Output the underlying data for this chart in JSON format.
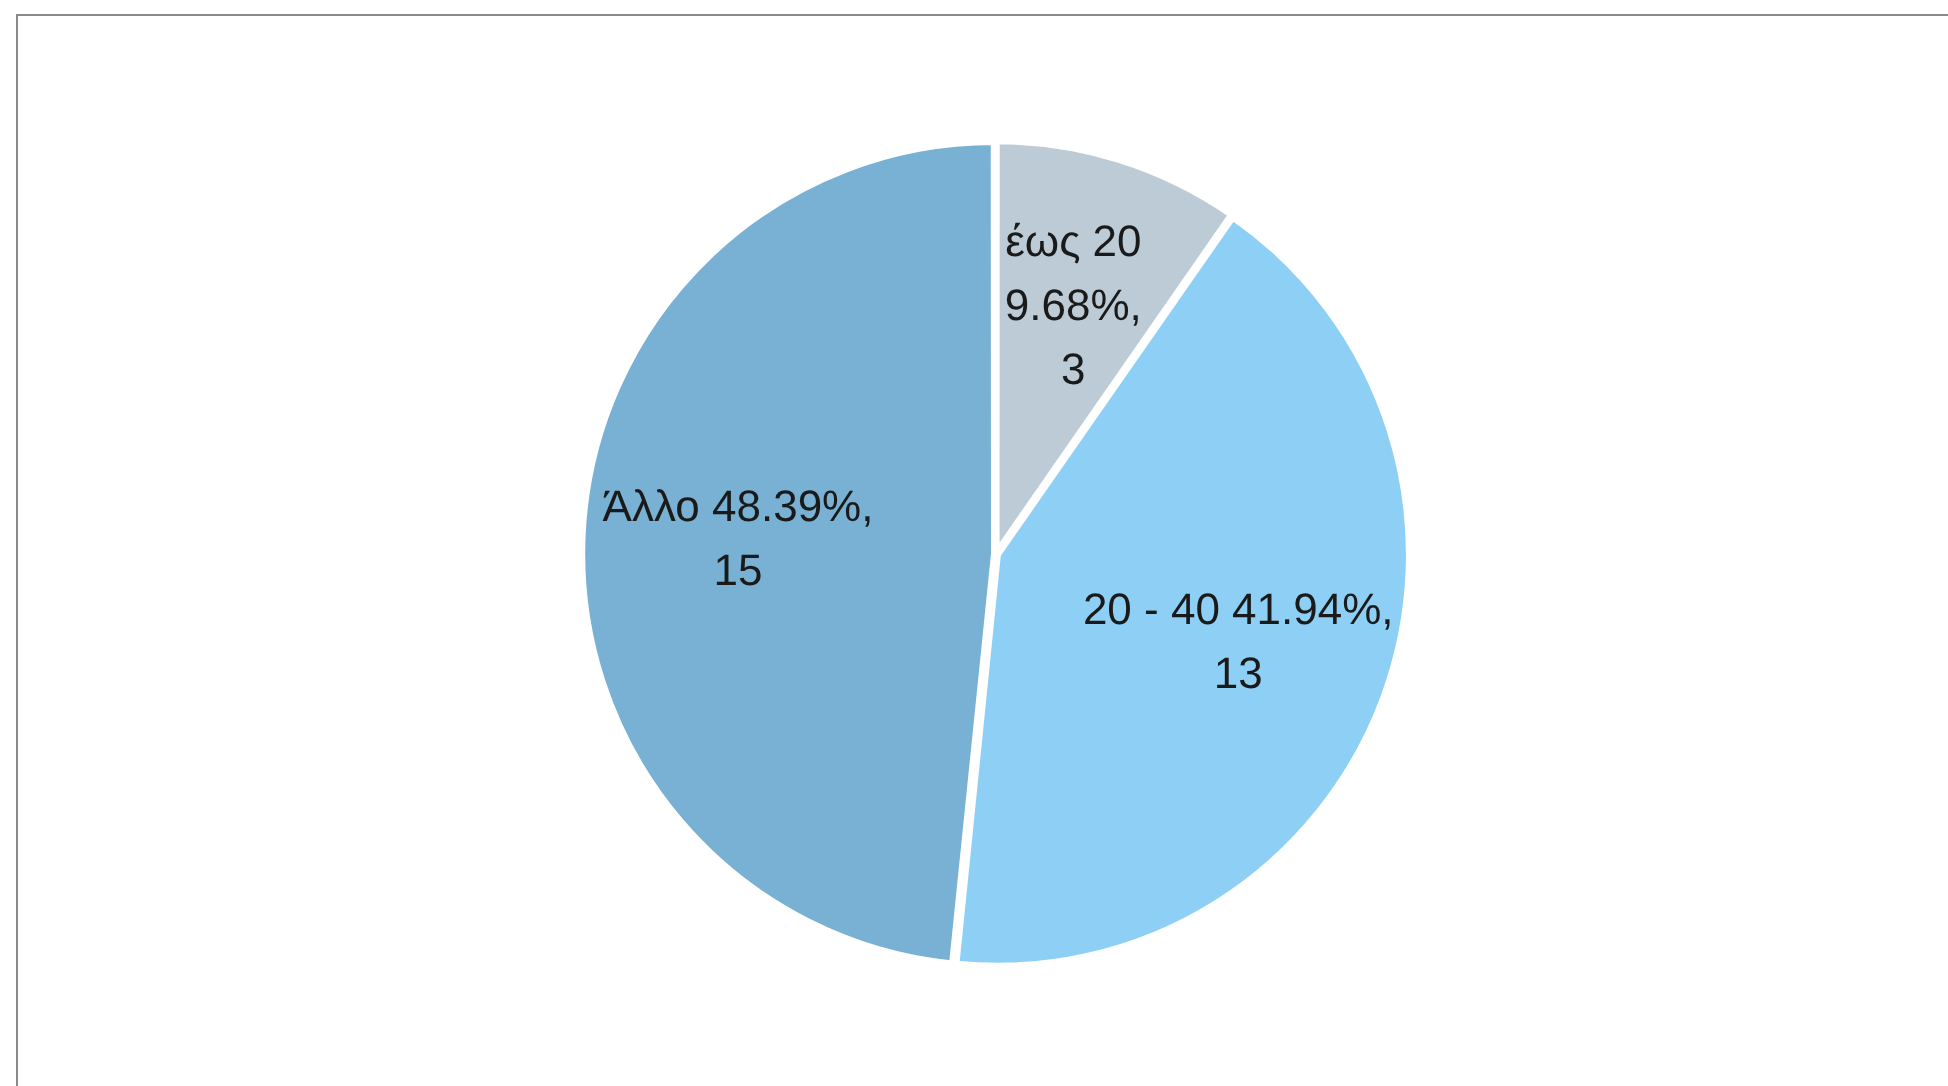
{
  "chart_data": {
    "type": "pie",
    "categories": [
      "έως 20",
      "20 - 40",
      "Άλλο"
    ],
    "values": [
      3,
      13,
      15
    ],
    "colors": [
      "#bccbd6",
      "#8ed0f5",
      "#78b1d3"
    ],
    "value_labels": [
      "9.68%, 3",
      "41.94%, 13",
      "48.39%, 15"
    ]
  }
}
